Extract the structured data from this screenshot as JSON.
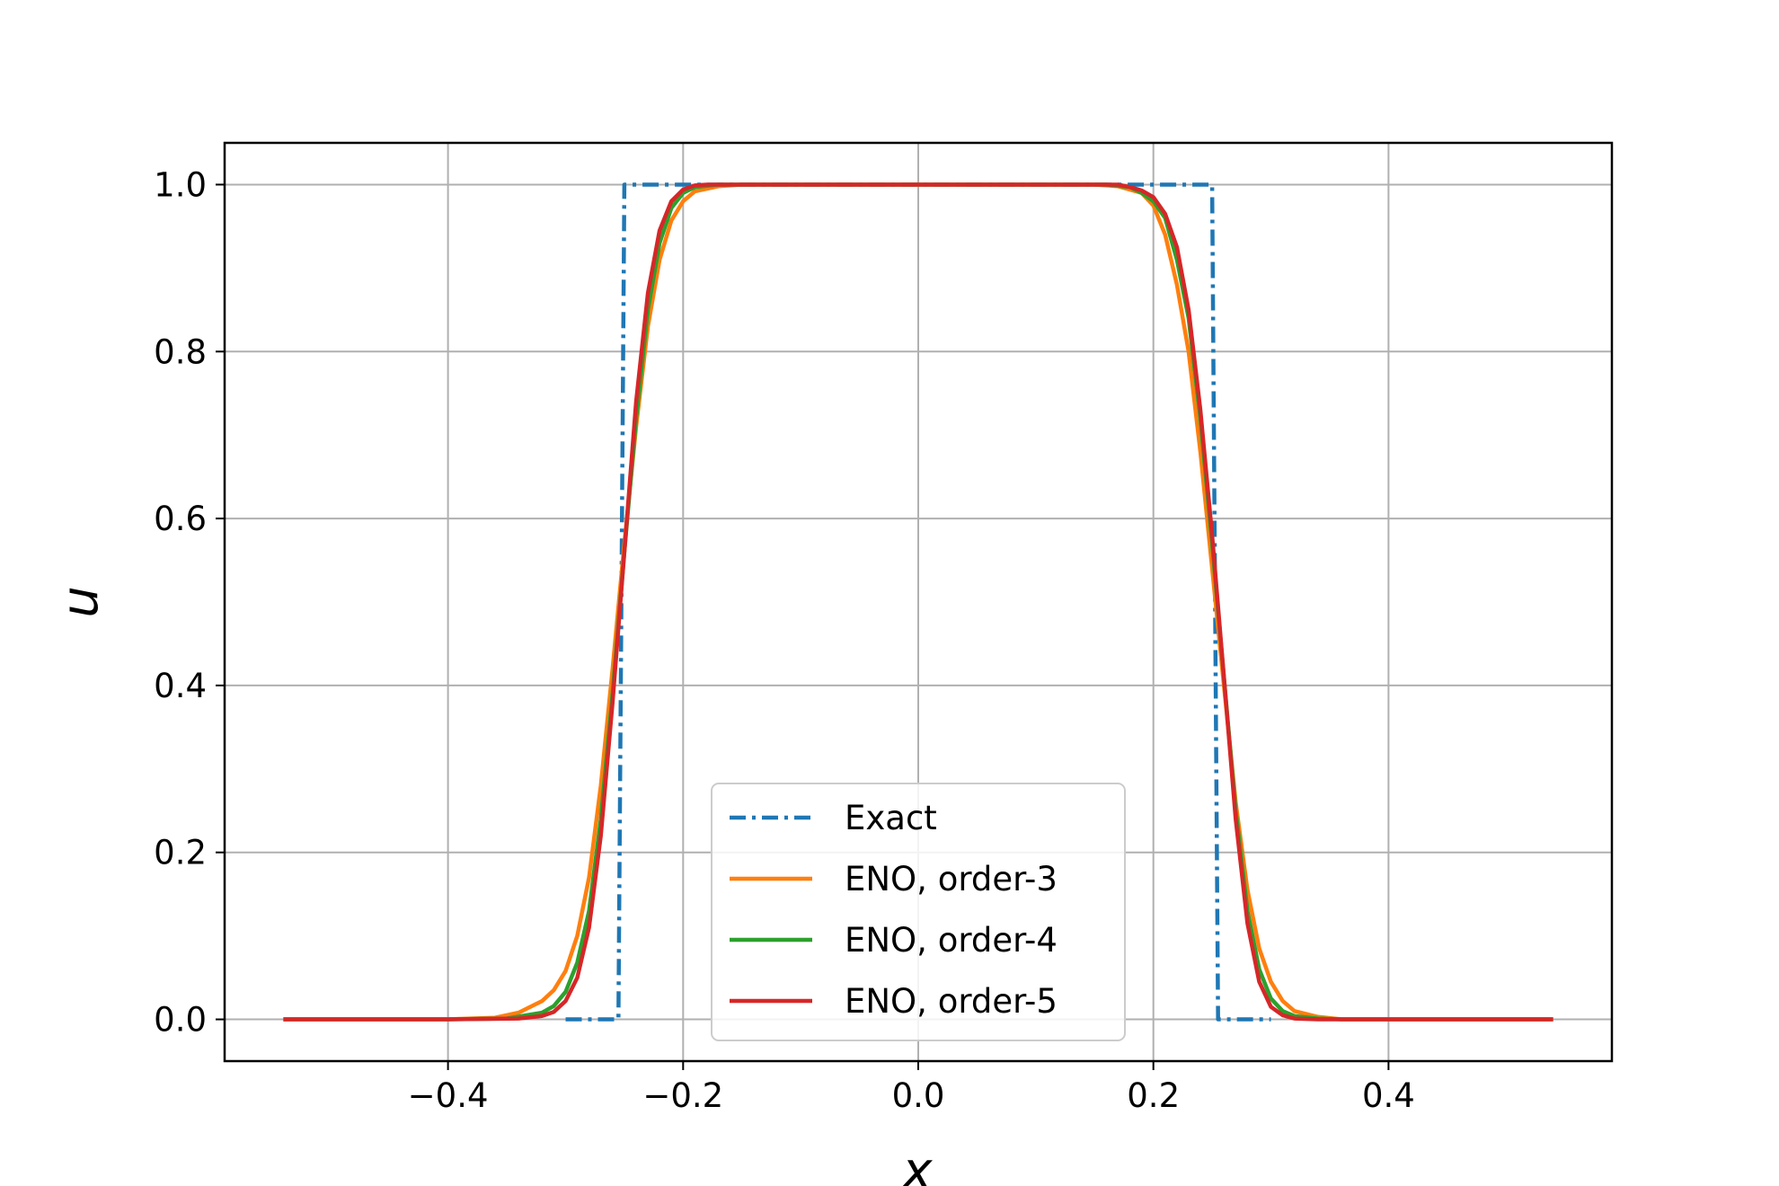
{
  "chart_data": {
    "type": "line",
    "xlabel": "x",
    "ylabel": "u",
    "xlim": [
      -0.59,
      0.59
    ],
    "ylim": [
      -0.05,
      1.05
    ],
    "xticks": [
      -0.4,
      -0.2,
      0.0,
      0.2,
      0.4
    ],
    "xtick_labels": [
      "−0.4",
      "−0.2",
      "0.0",
      "0.2",
      "0.4"
    ],
    "yticks": [
      0.0,
      0.2,
      0.4,
      0.6,
      0.8,
      1.0
    ],
    "ytick_labels": [
      "0.0",
      "0.2",
      "0.4",
      "0.6",
      "0.8",
      "1.0"
    ],
    "grid": true,
    "legend_position": "lower-center",
    "series": [
      {
        "name": "Exact",
        "color": "#1f77b4",
        "style": "dashdot",
        "points": [
          [
            -0.3,
            0.0
          ],
          [
            -0.255,
            0.0
          ],
          [
            -0.25,
            1.0
          ],
          [
            0.25,
            1.0
          ],
          [
            0.255,
            0.0
          ],
          [
            0.3,
            0.0
          ]
        ]
      },
      {
        "name": "ENO, order-3",
        "color": "#ff7f0e",
        "style": "solid",
        "points": [
          [
            -0.54,
            0.0
          ],
          [
            -0.4,
            0.0
          ],
          [
            -0.36,
            0.002
          ],
          [
            -0.34,
            0.008
          ],
          [
            -0.32,
            0.022
          ],
          [
            -0.31,
            0.035
          ],
          [
            -0.3,
            0.058
          ],
          [
            -0.29,
            0.1
          ],
          [
            -0.28,
            0.17
          ],
          [
            -0.27,
            0.28
          ],
          [
            -0.26,
            0.42
          ],
          [
            -0.25,
            0.57
          ],
          [
            -0.24,
            0.71
          ],
          [
            -0.23,
            0.83
          ],
          [
            -0.22,
            0.91
          ],
          [
            -0.21,
            0.957
          ],
          [
            -0.2,
            0.98
          ],
          [
            -0.19,
            0.992
          ],
          [
            -0.17,
            0.998
          ],
          [
            -0.15,
            1.0
          ],
          [
            0.15,
            1.0
          ],
          [
            0.17,
            0.998
          ],
          [
            0.19,
            0.99
          ],
          [
            0.2,
            0.975
          ],
          [
            0.21,
            0.94
          ],
          [
            0.22,
            0.88
          ],
          [
            0.23,
            0.8
          ],
          [
            0.24,
            0.68
          ],
          [
            0.25,
            0.54
          ],
          [
            0.26,
            0.4
          ],
          [
            0.27,
            0.26
          ],
          [
            0.28,
            0.155
          ],
          [
            0.29,
            0.085
          ],
          [
            0.3,
            0.045
          ],
          [
            0.31,
            0.022
          ],
          [
            0.32,
            0.01
          ],
          [
            0.34,
            0.003
          ],
          [
            0.36,
            0.0
          ],
          [
            0.54,
            0.0
          ]
        ]
      },
      {
        "name": "ENO, order-4",
        "color": "#2ca02c",
        "style": "solid",
        "points": [
          [
            -0.54,
            0.0
          ],
          [
            -0.4,
            0.0
          ],
          [
            -0.35,
            0.001
          ],
          [
            -0.32,
            0.008
          ],
          [
            -0.31,
            0.016
          ],
          [
            -0.3,
            0.033
          ],
          [
            -0.29,
            0.068
          ],
          [
            -0.28,
            0.13
          ],
          [
            -0.27,
            0.24
          ],
          [
            -0.26,
            0.39
          ],
          [
            -0.25,
            0.56
          ],
          [
            -0.24,
            0.72
          ],
          [
            -0.23,
            0.85
          ],
          [
            -0.22,
            0.93
          ],
          [
            -0.21,
            0.972
          ],
          [
            -0.2,
            0.99
          ],
          [
            -0.19,
            0.997
          ],
          [
            -0.17,
            1.0
          ],
          [
            0.16,
            1.0
          ],
          [
            0.18,
            0.997
          ],
          [
            0.19,
            0.99
          ],
          [
            0.2,
            0.98
          ],
          [
            0.21,
            0.96
          ],
          [
            0.22,
            0.91
          ],
          [
            0.23,
            0.84
          ],
          [
            0.24,
            0.72
          ],
          [
            0.25,
            0.57
          ],
          [
            0.26,
            0.41
          ],
          [
            0.27,
            0.25
          ],
          [
            0.28,
            0.13
          ],
          [
            0.29,
            0.06
          ],
          [
            0.3,
            0.025
          ],
          [
            0.31,
            0.01
          ],
          [
            0.32,
            0.004
          ],
          [
            0.34,
            0.001
          ],
          [
            0.36,
            0.0
          ],
          [
            0.54,
            0.0
          ]
        ]
      },
      {
        "name": "ENO, order-5",
        "color": "#d62728",
        "style": "solid",
        "points": [
          [
            -0.54,
            0.0
          ],
          [
            -0.4,
            0.0
          ],
          [
            -0.34,
            0.001
          ],
          [
            -0.32,
            0.004
          ],
          [
            -0.31,
            0.009
          ],
          [
            -0.3,
            0.022
          ],
          [
            -0.29,
            0.05
          ],
          [
            -0.28,
            0.11
          ],
          [
            -0.27,
            0.22
          ],
          [
            -0.26,
            0.38
          ],
          [
            -0.25,
            0.56
          ],
          [
            -0.24,
            0.74
          ],
          [
            -0.23,
            0.87
          ],
          [
            -0.22,
            0.945
          ],
          [
            -0.21,
            0.98
          ],
          [
            -0.2,
            0.994
          ],
          [
            -0.19,
            0.999
          ],
          [
            -0.18,
            1.0
          ],
          [
            0.17,
            1.0
          ],
          [
            0.18,
            0.997
          ],
          [
            0.19,
            0.993
          ],
          [
            0.2,
            0.985
          ],
          [
            0.21,
            0.965
          ],
          [
            0.22,
            0.925
          ],
          [
            0.23,
            0.85
          ],
          [
            0.24,
            0.73
          ],
          [
            0.25,
            0.58
          ],
          [
            0.26,
            0.41
          ],
          [
            0.27,
            0.24
          ],
          [
            0.28,
            0.115
          ],
          [
            0.29,
            0.045
          ],
          [
            0.3,
            0.015
          ],
          [
            0.31,
            0.005
          ],
          [
            0.32,
            0.001
          ],
          [
            0.34,
            0.0
          ],
          [
            0.54,
            0.0
          ]
        ]
      }
    ]
  }
}
